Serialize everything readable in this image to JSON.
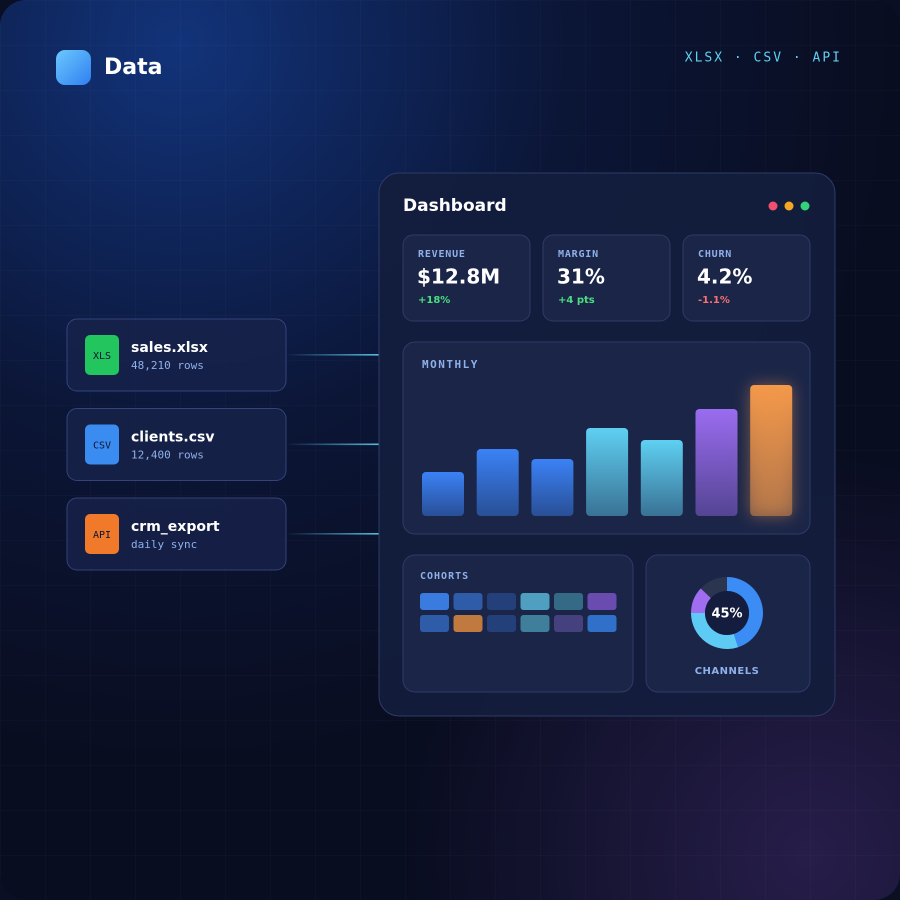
{
  "header": {
    "title": "Data",
    "tag": "XLSX · CSV · API"
  },
  "files": [
    {
      "badge": "XLS",
      "name": "sales.xlsx",
      "detail": "48,210 rows",
      "color": "#22c55e"
    },
    {
      "badge": "CSV",
      "name": "clients.csv",
      "detail": "12,400 rows",
      "color": "#3b8cf0"
    },
    {
      "badge": "API",
      "name": "crm_export",
      "detail": "daily sync",
      "color": "#f07a2a"
    }
  ],
  "dashboard": {
    "title": "Dashboard",
    "kpis": [
      {
        "label": "REVENUE",
        "value": "$12.8M",
        "delta": "+18%",
        "delta_color": "#4ade80"
      },
      {
        "label": "MARGIN",
        "value": "31%",
        "delta": "+4 pts",
        "delta_color": "#4ade80"
      },
      {
        "label": "CHURN",
        "value": "4.2%",
        "delta": "-1.1%",
        "delta_color": "#f87171"
      }
    ],
    "monthly": {
      "type": "bar",
      "title": "MONTHLY",
      "values": [
        44,
        67,
        57,
        88,
        76,
        107,
        131
      ],
      "colors": [
        "#3b82f6",
        "#3b82f6",
        "#3b82f6",
        "#5fd0f2",
        "#5fd0f2",
        "#9b6cf0",
        "#f5994a"
      ],
      "ylim": [
        0,
        140
      ]
    },
    "cohorts": {
      "title": "COHORTS",
      "colors": [
        "#3a7be0",
        "#2f5ca8",
        "#24407a",
        "#4fa0c0",
        "#356a86",
        "#6a4bb0",
        "#2f5ca8",
        "#c07a40",
        "#24407a",
        "#3f7f9c",
        "#45407e",
        "#3070c8"
      ]
    },
    "channels": {
      "type": "pie",
      "title": "CHANNELS",
      "center_label": "45%",
      "values": [
        45,
        30,
        12,
        13
      ],
      "colors": [
        "#3b8cf5",
        "#5ecbf5",
        "#a06cf0",
        "#2c3550"
      ]
    }
  }
}
